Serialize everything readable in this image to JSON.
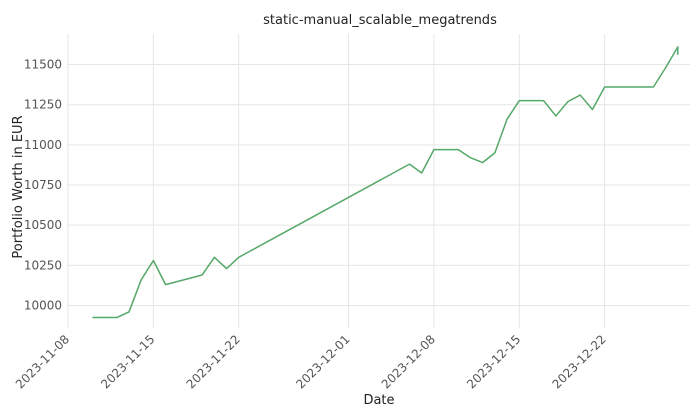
{
  "chart_data": {
    "type": "line",
    "title": "static-manual_scalable_megatrends",
    "xlabel": "Date",
    "ylabel": "Portfolio Worth in EUR",
    "xlim": [
      "2023-11-08",
      "2023-12-29"
    ],
    "ylim": [
      9860,
      11690
    ],
    "x_ticks": [
      "2023-11-08",
      "2023-11-15",
      "2023-11-22",
      "2023-12-01",
      "2023-12-08",
      "2023-12-15",
      "2023-12-22"
    ],
    "y_ticks": [
      10000,
      10250,
      10500,
      10750,
      11000,
      11250,
      11500
    ],
    "grid": true,
    "legend": "none",
    "series": [
      {
        "color": "#55a868",
        "x": [
          "2023-11-10",
          "2023-11-12",
          "2023-11-13",
          "2023-11-14",
          "2023-11-15",
          "2023-11-16",
          "2023-11-19",
          "2023-11-20",
          "2023-11-21",
          "2023-11-22",
          "2023-12-06",
          "2023-12-07",
          "2023-12-08",
          "2023-12-10",
          "2023-12-11",
          "2023-12-12",
          "2023-12-13",
          "2023-12-14",
          "2023-12-15",
          "2023-12-17",
          "2023-12-18",
          "2023-12-19",
          "2023-12-20",
          "2023-12-21",
          "2023-12-22",
          "2023-12-26",
          "2023-12-27",
          "2023-12-28",
          "2023-12-28"
        ],
        "values": [
          9925,
          9925,
          9960,
          10160,
          10280,
          10130,
          10190,
          10300,
          10230,
          10300,
          10880,
          10825,
          10970,
          10970,
          10920,
          10890,
          10950,
          11160,
          11275,
          11275,
          11180,
          11270,
          11310,
          11220,
          11360,
          11360,
          11480,
          11610,
          11560
        ]
      }
    ]
  }
}
